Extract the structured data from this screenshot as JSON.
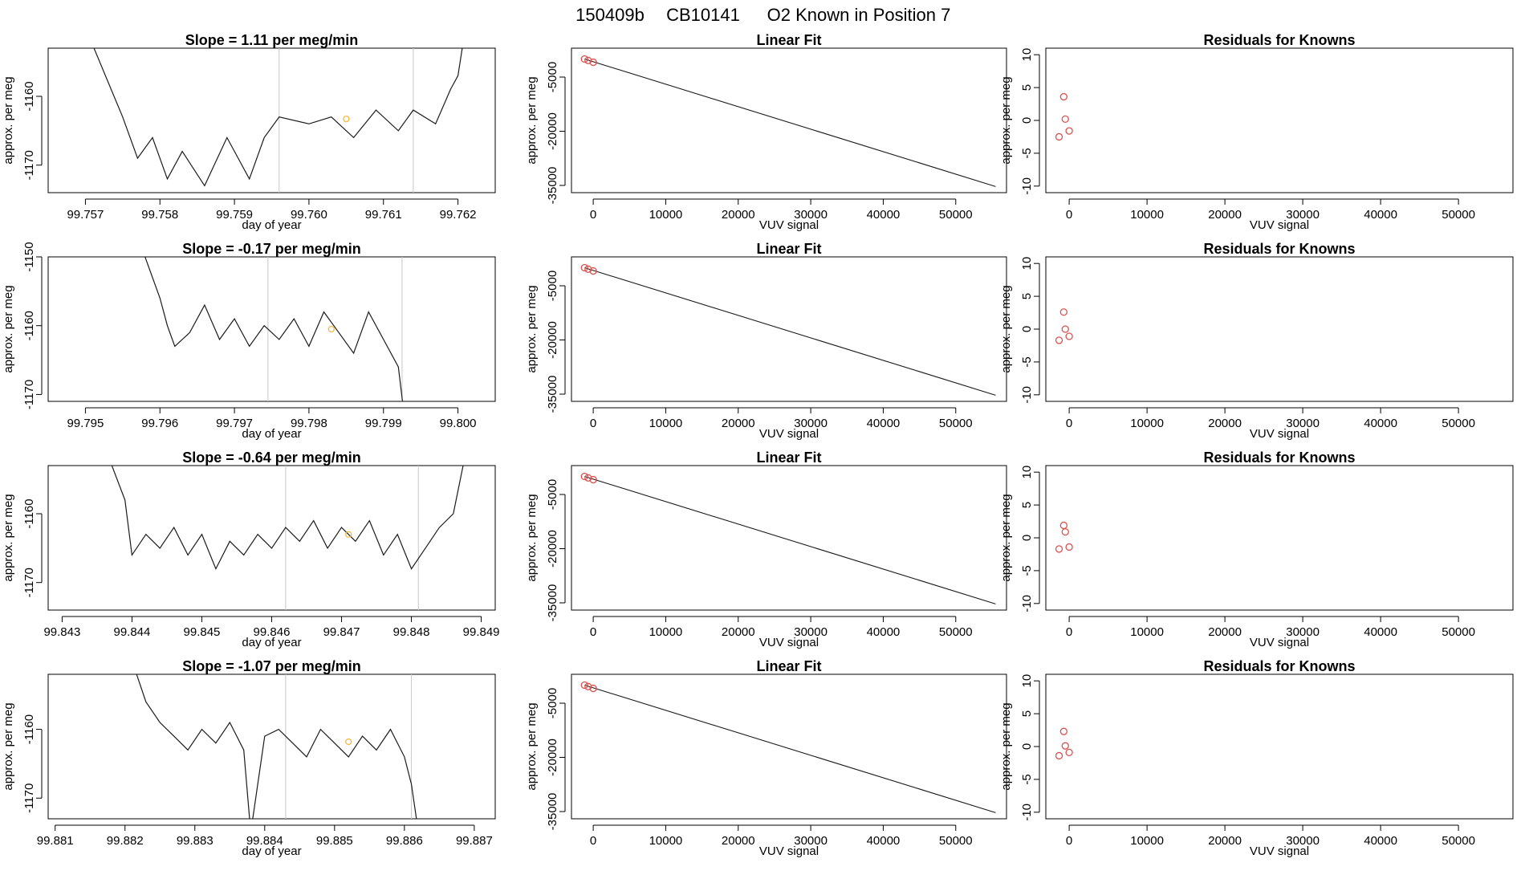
{
  "title": {
    "parts": [
      "150409b",
      "CB10141",
      "O2 Known in Position  7"
    ]
  },
  "panel_labels": {
    "slope_prefix": "Slope = ",
    "slope_suffix": "per meg/min",
    "linear_fit_title": "Linear Fit",
    "residuals_title": "Residuals for Knowns",
    "time_xlabel": "day of year",
    "vuv_xlabel": "VUV signal",
    "ylabel": "approx. per meg"
  },
  "chart_data": [
    {
      "type": "line",
      "panel": "time",
      "row": 0,
      "slope": "1.11",
      "title": "Slope =  1.11  per meg/min",
      "xlabel": "day of year",
      "ylabel": "approx. per meg",
      "xlim": [
        99.7565,
        99.7625
      ],
      "ylim": [
        -1174,
        -1153
      ],
      "xticks": [
        "99.757",
        "99.758",
        "99.759",
        "99.760",
        "99.761",
        "99.762"
      ],
      "xtick_values": [
        99.757,
        99.758,
        99.759,
        99.76,
        99.761,
        99.762
      ],
      "yticks": [
        "-1160",
        "-1170"
      ],
      "ytick_values": [
        -1160,
        -1170
      ],
      "vlines": [
        99.7596,
        99.7614
      ],
      "highlight": {
        "x": 99.7605,
        "y": -1163.3
      },
      "x": [
        99.757,
        99.7575,
        99.7577,
        99.7579,
        99.7581,
        99.7583,
        99.7586,
        99.7589,
        99.7592,
        99.7594,
        99.7596,
        99.76,
        99.7603,
        99.7606,
        99.7609,
        99.7612,
        99.7614,
        99.7617,
        99.7619,
        99.762,
        99.7621
      ],
      "y": [
        -1150,
        -1163,
        -1169,
        -1166,
        -1172,
        -1168,
        -1173,
        -1166,
        -1172,
        -1166,
        -1163,
        -1164,
        -1163,
        -1166,
        -1162,
        -1165,
        -1162,
        -1164,
        -1159,
        -1157,
        -1150
      ]
    },
    {
      "type": "line",
      "panel": "time",
      "row": 1,
      "slope": "-0.17",
      "title": "Slope =  -0.17  per meg/min",
      "xlabel": "day of year",
      "ylabel": "approx. per meg",
      "xlim": [
        99.7945,
        99.8005
      ],
      "ylim": [
        -1171,
        -1150
      ],
      "xticks": [
        "99.795",
        "99.796",
        "99.797",
        "99.798",
        "99.799",
        "99.800"
      ],
      "xtick_values": [
        99.795,
        99.796,
        99.797,
        99.798,
        99.799,
        99.8
      ],
      "yticks": [
        "-1150",
        "-1160",
        "-1170"
      ],
      "ytick_values": [
        -1150,
        -1160,
        -1170
      ],
      "vlines": [
        99.79745,
        99.79925
      ],
      "highlight": {
        "x": 99.7983,
        "y": -1160.5
      },
      "x": [
        99.7958,
        99.796,
        99.7961,
        99.7962,
        99.7964,
        99.7966,
        99.7968,
        99.797,
        99.7972,
        99.7974,
        99.7976,
        99.7978,
        99.798,
        99.7982,
        99.7984,
        99.7986,
        99.7988,
        99.799,
        99.7992,
        99.7993
      ],
      "y": [
        -1150,
        -1156,
        -1160,
        -1163,
        -1161,
        -1157,
        -1162,
        -1159,
        -1163,
        -1160,
        -1162,
        -1159,
        -1163,
        -1158,
        -1161,
        -1164,
        -1158,
        -1162,
        -1166,
        -1175
      ]
    },
    {
      "type": "line",
      "panel": "time",
      "row": 2,
      "slope": "-0.64",
      "title": "Slope =  -0.64  per meg/min",
      "xlabel": "day of year",
      "ylabel": "approx. per meg",
      "xlim": [
        99.8428,
        99.8492
      ],
      "ylim": [
        -1174,
        -1153
      ],
      "xticks": [
        "99.843",
        "99.844",
        "99.845",
        "99.846",
        "99.847",
        "99.848",
        "99.849"
      ],
      "xtick_values": [
        99.843,
        99.844,
        99.845,
        99.846,
        99.847,
        99.848,
        99.849
      ],
      "yticks": [
        "-1160",
        "-1170"
      ],
      "ytick_values": [
        -1160,
        -1170
      ],
      "vlines": [
        99.8462,
        99.8481
      ],
      "highlight": {
        "x": 99.8471,
        "y": -1163.0
      },
      "x": [
        99.8436,
        99.8439,
        99.844,
        99.8442,
        99.8444,
        99.8446,
        99.8448,
        99.845,
        99.8452,
        99.8454,
        99.8456,
        99.8458,
        99.846,
        99.8462,
        99.8464,
        99.8466,
        99.8468,
        99.847,
        99.8472,
        99.8474,
        99.8476,
        99.8478,
        99.848,
        99.8482,
        99.8484,
        99.8486,
        99.8488
      ],
      "y": [
        -1150,
        -1158,
        -1166,
        -1163,
        -1165,
        -1162,
        -1166,
        -1163,
        -1168,
        -1164,
        -1166,
        -1163,
        -1165,
        -1162,
        -1164,
        -1161,
        -1165,
        -1162,
        -1164,
        -1161,
        -1166,
        -1163,
        -1168,
        -1165,
        -1162,
        -1160,
        -1150
      ]
    },
    {
      "type": "line",
      "panel": "time",
      "row": 3,
      "slope": "-1.07",
      "title": "Slope =  -1.07  per meg/min",
      "xlabel": "day of year",
      "ylabel": "approx. per meg",
      "xlim": [
        99.8809,
        99.8873
      ],
      "ylim": [
        -1173,
        -1152
      ],
      "xticks": [
        "99.881",
        "99.882",
        "99.883",
        "99.884",
        "99.885",
        "99.886",
        "99.887"
      ],
      "xtick_values": [
        99.881,
        99.882,
        99.883,
        99.884,
        99.885,
        99.886,
        99.887
      ],
      "yticks": [
        "-1160",
        "-1170"
      ],
      "ytick_values": [
        -1160,
        -1170
      ],
      "vlines": [
        99.8843,
        99.8861
      ],
      "highlight": {
        "x": 99.8852,
        "y": -1161.8
      },
      "x": [
        99.8821,
        99.8823,
        99.8825,
        99.8827,
        99.8829,
        99.8831,
        99.8833,
        99.8835,
        99.8837,
        99.8838,
        99.884,
        99.8842,
        99.8844,
        99.8846,
        99.8848,
        99.885,
        99.8852,
        99.8854,
        99.8856,
        99.8858,
        99.886,
        99.8861,
        99.8862
      ],
      "y": [
        -1150,
        -1156,
        -1159,
        -1161,
        -1163,
        -1160,
        -1162,
        -1159,
        -1163,
        -1175,
        -1161,
        -1160,
        -1162,
        -1164,
        -1160,
        -1162,
        -1164,
        -1161,
        -1163,
        -1160,
        -1164,
        -1168,
        -1175
      ]
    },
    {
      "type": "line",
      "panel": "fit",
      "row": 0,
      "title": "Linear Fit",
      "xlabel": "VUV signal",
      "ylabel": "approx. per meg",
      "xlim": [
        -3000,
        57000
      ],
      "ylim": [
        -37000,
        3000
      ],
      "xticks": [
        "0",
        "10000",
        "20000",
        "30000",
        "40000",
        "50000"
      ],
      "xtick_values": [
        0,
        10000,
        20000,
        30000,
        40000,
        50000
      ],
      "yticks": [
        "-5000",
        "-20000",
        "-35000"
      ],
      "ytick_values": [
        -5000,
        -20000,
        -35000
      ],
      "line": {
        "x": [
          -1200,
          55500
        ],
        "y": [
          0,
          -35300
        ]
      },
      "points": {
        "x": [
          -1200,
          -700,
          0
        ],
        "y": [
          0,
          -400,
          -900
        ]
      }
    },
    {
      "type": "line",
      "panel": "fit",
      "row": 1,
      "title": "Linear Fit",
      "xlabel": "VUV signal",
      "ylabel": "approx. per meg",
      "xlim": [
        -3000,
        57000
      ],
      "ylim": [
        -37000,
        3000
      ],
      "xticks": [
        "0",
        "10000",
        "20000",
        "30000",
        "40000",
        "50000"
      ],
      "xtick_values": [
        0,
        10000,
        20000,
        30000,
        40000,
        50000
      ],
      "yticks": [
        "-5000",
        "-20000",
        "-35000"
      ],
      "ytick_values": [
        -5000,
        -20000,
        -35000
      ],
      "line": {
        "x": [
          -1200,
          55500
        ],
        "y": [
          0,
          -35300
        ]
      },
      "points": {
        "x": [
          -1200,
          -700,
          0
        ],
        "y": [
          0,
          -400,
          -900
        ]
      }
    },
    {
      "type": "line",
      "panel": "fit",
      "row": 2,
      "title": "Linear Fit",
      "xlabel": "VUV signal",
      "ylabel": "approx. per meg",
      "xlim": [
        -3000,
        57000
      ],
      "ylim": [
        -37000,
        3000
      ],
      "xticks": [
        "0",
        "10000",
        "20000",
        "30000",
        "40000",
        "50000"
      ],
      "xtick_values": [
        0,
        10000,
        20000,
        30000,
        40000,
        50000
      ],
      "yticks": [
        "-5000",
        "-20000",
        "-35000"
      ],
      "ytick_values": [
        -5000,
        -20000,
        -35000
      ],
      "line": {
        "x": [
          -1200,
          55500
        ],
        "y": [
          0,
          -35300
        ]
      },
      "points": {
        "x": [
          -1200,
          -700,
          0
        ],
        "y": [
          0,
          -400,
          -900
        ]
      }
    },
    {
      "type": "line",
      "panel": "fit",
      "row": 3,
      "title": "Linear Fit",
      "xlabel": "VUV signal",
      "ylabel": "approx. per meg",
      "xlim": [
        -3000,
        57000
      ],
      "ylim": [
        -37000,
        3000
      ],
      "xticks": [
        "0",
        "10000",
        "20000",
        "30000",
        "40000",
        "50000"
      ],
      "xtick_values": [
        0,
        10000,
        20000,
        30000,
        40000,
        50000
      ],
      "yticks": [
        "-5000",
        "-20000",
        "-35000"
      ],
      "ytick_values": [
        -5000,
        -20000,
        -35000
      ],
      "line": {
        "x": [
          -1200,
          55500
        ],
        "y": [
          0,
          -35300
        ]
      },
      "points": {
        "x": [
          -1200,
          -700,
          0
        ],
        "y": [
          0,
          -400,
          -900
        ]
      }
    },
    {
      "type": "scatter",
      "panel": "resid",
      "row": 0,
      "title": "Residuals for Knowns",
      "xlabel": "VUV signal",
      "ylabel": "approx. per meg",
      "xlim": [
        -3000,
        57000
      ],
      "ylim": [
        -11,
        11
      ],
      "xticks": [
        "0",
        "10000",
        "20000",
        "30000",
        "40000",
        "50000"
      ],
      "xtick_values": [
        0,
        10000,
        20000,
        30000,
        40000,
        50000
      ],
      "yticks": [
        "10",
        "5",
        "0",
        "-5",
        "-10"
      ],
      "ytick_values": [
        10,
        5,
        0,
        -5,
        -10
      ],
      "x": [
        -1300,
        -700,
        -500,
        0
      ],
      "y": [
        -2.5,
        3.6,
        0.2,
        -1.6
      ]
    },
    {
      "type": "scatter",
      "panel": "resid",
      "row": 1,
      "title": "Residuals for Knowns",
      "xlabel": "VUV signal",
      "ylabel": "approx. per meg",
      "xlim": [
        -3000,
        57000
      ],
      "ylim": [
        -11,
        11
      ],
      "xticks": [
        "0",
        "10000",
        "20000",
        "30000",
        "40000",
        "50000"
      ],
      "xtick_values": [
        0,
        10000,
        20000,
        30000,
        40000,
        50000
      ],
      "yticks": [
        "10",
        "5",
        "0",
        "-5",
        "-10"
      ],
      "ytick_values": [
        10,
        5,
        0,
        -5,
        -10
      ],
      "x": [
        -1300,
        -700,
        -500,
        0
      ],
      "y": [
        -1.7,
        2.6,
        0.0,
        -1.1
      ]
    },
    {
      "type": "scatter",
      "panel": "resid",
      "row": 2,
      "title": "Residuals for Knowns",
      "xlabel": "VUV signal",
      "ylabel": "approx. per meg",
      "xlim": [
        -3000,
        57000
      ],
      "ylim": [
        -11,
        11
      ],
      "xticks": [
        "0",
        "10000",
        "20000",
        "30000",
        "40000",
        "50000"
      ],
      "xtick_values": [
        0,
        10000,
        20000,
        30000,
        40000,
        50000
      ],
      "yticks": [
        "10",
        "5",
        "0",
        "-5",
        "-10"
      ],
      "ytick_values": [
        10,
        5,
        0,
        -5,
        -10
      ],
      "x": [
        -1300,
        -700,
        -500,
        0
      ],
      "y": [
        -1.7,
        1.9,
        0.9,
        -1.4
      ]
    },
    {
      "type": "scatter",
      "panel": "resid",
      "row": 3,
      "title": "Residuals for Knowns",
      "xlabel": "VUV signal",
      "ylabel": "approx. per meg",
      "xlim": [
        -3000,
        57000
      ],
      "ylim": [
        -11,
        11
      ],
      "xticks": [
        "0",
        "10000",
        "20000",
        "30000",
        "40000",
        "50000"
      ],
      "xtick_values": [
        0,
        10000,
        20000,
        30000,
        40000,
        50000
      ],
      "yticks": [
        "10",
        "5",
        "0",
        "-5",
        "-10"
      ],
      "ytick_values": [
        10,
        5,
        0,
        -5,
        -10
      ],
      "x": [
        -1300,
        -700,
        -500,
        0
      ],
      "y": [
        -1.4,
        2.3,
        0.1,
        -0.9
      ]
    }
  ],
  "colors": {
    "axis": "#000000",
    "line": "#1a1a1a",
    "vline": "#c8c8c8",
    "points": "#d9534f",
    "highlight": "#f5b841"
  }
}
